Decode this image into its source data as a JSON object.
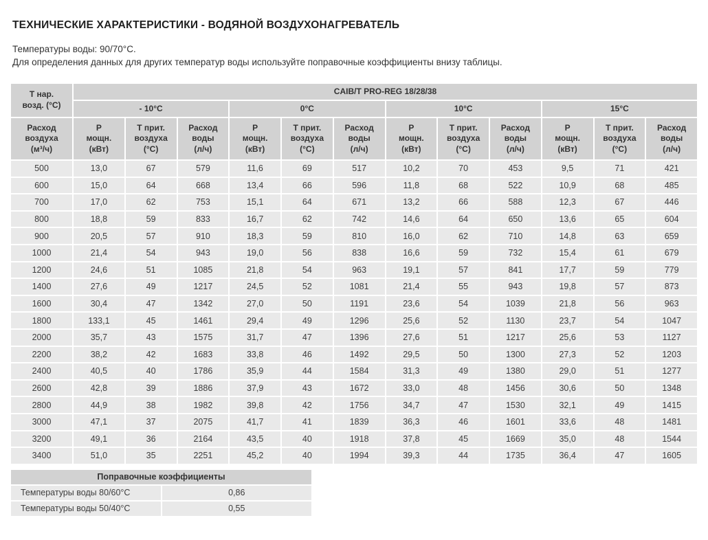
{
  "title": "ТЕХНИЧЕСКИЕ ХАРАКТЕРИСТИКИ - ВОДЯНОЙ ВОЗДУХОНАГРЕВАТЕЛЬ",
  "subtitle_lines": [
    "Температуры воды: 90/70°С.",
    "Для определения данных для других температур воды используйте поправочные коэффициенты внизу таблицы."
  ],
  "colors": {
    "header_bg": "#d2d2d2",
    "cell_bg": "#e9e9e9",
    "text": "#3a3a3a"
  },
  "main_table": {
    "corner_header": "Т нар.\nвозд. (°С)",
    "model_header": "CAIB/T PRO-REG 18/28/38",
    "temp_groups": [
      "- 10°C",
      "0°C",
      "10°C",
      "15°C"
    ],
    "sub_headers": [
      "Р\nмощн.\n(кВт)",
      "Т прит.\nвоздуха\n(°С)",
      "Расход\nводы\n(л/ч)"
    ],
    "airflow_header": "Расход\nвоздуха\n(м³/ч)",
    "rows": [
      [
        "500",
        "13,0",
        "67",
        "579",
        "11,6",
        "69",
        "517",
        "10,2",
        "70",
        "453",
        "9,5",
        "71",
        "421"
      ],
      [
        "600",
        "15,0",
        "64",
        "668",
        "13,4",
        "66",
        "596",
        "11,8",
        "68",
        "522",
        "10,9",
        "68",
        "485"
      ],
      [
        "700",
        "17,0",
        "62",
        "753",
        "15,1",
        "64",
        "671",
        "13,2",
        "66",
        "588",
        "12,3",
        "67",
        "446"
      ],
      [
        "800",
        "18,8",
        "59",
        "833",
        "16,7",
        "62",
        "742",
        "14,6",
        "64",
        "650",
        "13,6",
        "65",
        "604"
      ],
      [
        "900",
        "20,5",
        "57",
        "910",
        "18,3",
        "59",
        "810",
        "16,0",
        "62",
        "710",
        "14,8",
        "63",
        "659"
      ],
      [
        "1000",
        "21,4",
        "54",
        "943",
        "19,0",
        "56",
        "838",
        "16,6",
        "59",
        "732",
        "15,4",
        "61",
        "679"
      ],
      [
        "1200",
        "24,6",
        "51",
        "1085",
        "21,8",
        "54",
        "963",
        "19,1",
        "57",
        "841",
        "17,7",
        "59",
        "779"
      ],
      [
        "1400",
        "27,6",
        "49",
        "1217",
        "24,5",
        "52",
        "1081",
        "21,4",
        "55",
        "943",
        "19,8",
        "57",
        "873"
      ],
      [
        "1600",
        "30,4",
        "47",
        "1342",
        "27,0",
        "50",
        "1191",
        "23,6",
        "54",
        "1039",
        "21,8",
        "56",
        "963"
      ],
      [
        "1800",
        "133,1",
        "45",
        "1461",
        "29,4",
        "49",
        "1296",
        "25,6",
        "52",
        "1130",
        "23,7",
        "54",
        "1047"
      ],
      [
        "2000",
        "35,7",
        "43",
        "1575",
        "31,7",
        "47",
        "1396",
        "27,6",
        "51",
        "1217",
        "25,6",
        "53",
        "1127"
      ],
      [
        "2200",
        "38,2",
        "42",
        "1683",
        "33,8",
        "46",
        "1492",
        "29,5",
        "50",
        "1300",
        "27,3",
        "52",
        "1203"
      ],
      [
        "2400",
        "40,5",
        "40",
        "1786",
        "35,9",
        "44",
        "1584",
        "31,3",
        "49",
        "1380",
        "29,0",
        "51",
        "1277"
      ],
      [
        "2600",
        "42,8",
        "39",
        "1886",
        "37,9",
        "43",
        "1672",
        "33,0",
        "48",
        "1456",
        "30,6",
        "50",
        "1348"
      ],
      [
        "2800",
        "44,9",
        "38",
        "1982",
        "39,8",
        "42",
        "1756",
        "34,7",
        "47",
        "1530",
        "32,1",
        "49",
        "1415"
      ],
      [
        "3000",
        "47,1",
        "37",
        "2075",
        "41,7",
        "41",
        "1839",
        "36,3",
        "46",
        "1601",
        "33,6",
        "48",
        "1481"
      ],
      [
        "3200",
        "49,1",
        "36",
        "2164",
        "43,5",
        "40",
        "1918",
        "37,8",
        "45",
        "1669",
        "35,0",
        "48",
        "1544"
      ],
      [
        "3400",
        "51,0",
        "35",
        "2251",
        "45,2",
        "40",
        "1994",
        "39,3",
        "44",
        "1735",
        "36,4",
        "47",
        "1605"
      ]
    ]
  },
  "coefficients_table": {
    "header": "Поправочные коэффициенты",
    "rows": [
      {
        "label": "Температуры воды 80/60°С",
        "value": "0,86"
      },
      {
        "label": "Температуры воды 50/40°С",
        "value": "0,55"
      }
    ]
  }
}
